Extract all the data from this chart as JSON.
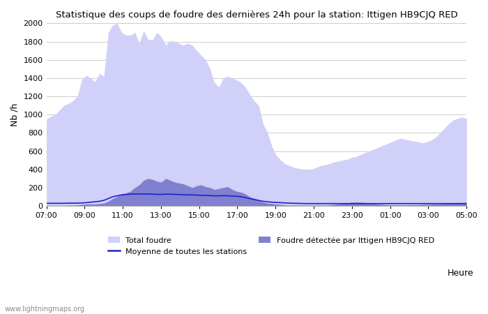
{
  "title": "Statistique des coups de foudre des dernières 24h pour la station: Ittigen HB9CJQ RED",
  "ylabel": "Nb /h",
  "xlabel": "Heure",
  "ylim": [
    0,
    2000
  ],
  "yticks": [
    0,
    200,
    400,
    600,
    800,
    1000,
    1200,
    1400,
    1600,
    1800,
    2000
  ],
  "xtick_labels": [
    "07:00",
    "09:00",
    "11:00",
    "13:00",
    "15:00",
    "17:00",
    "19:00",
    "21:00",
    "23:00",
    "01:00",
    "03:00",
    "05:00"
  ],
  "bg_color": "#ffffff",
  "grid_color": "#cccccc",
  "total_color": "#d0d0f8",
  "local_color": "#8080d0",
  "mean_color": "#2020cc",
  "watermark": "www.lightningmaps.org",
  "total_foudre": [
    950,
    980,
    1000,
    1050,
    1100,
    1120,
    1150,
    1200,
    1380,
    1430,
    1400,
    1360,
    1450,
    1420,
    1900,
    1980,
    2000,
    1900,
    1870,
    1870,
    1900,
    1780,
    1920,
    1820,
    1820,
    1900,
    1850,
    1760,
    1810,
    1800,
    1780,
    1760,
    1780,
    1760,
    1700,
    1650,
    1600,
    1500,
    1350,
    1300,
    1400,
    1420,
    1400,
    1380,
    1350,
    1300,
    1220,
    1150,
    1100,
    900,
    800,
    650,
    550,
    500,
    460,
    440,
    420,
    410,
    400,
    390,
    400,
    420,
    440,
    450,
    460,
    480,
    490,
    500,
    510,
    530,
    540,
    560,
    580,
    600,
    620,
    640,
    660,
    680,
    700,
    720,
    740,
    730,
    720,
    710,
    700,
    690,
    700,
    720,
    750,
    800,
    850,
    900,
    940,
    960,
    970,
    960
  ],
  "local_foudre": [
    5,
    5,
    5,
    5,
    5,
    8,
    8,
    10,
    15,
    20,
    20,
    20,
    25,
    30,
    50,
    80,
    100,
    130,
    140,
    160,
    200,
    230,
    280,
    300,
    290,
    270,
    260,
    300,
    280,
    260,
    250,
    240,
    220,
    200,
    220,
    230,
    210,
    200,
    180,
    190,
    200,
    210,
    180,
    160,
    150,
    130,
    100,
    80,
    60,
    40,
    30,
    25,
    20,
    15,
    10,
    8,
    8,
    8,
    8,
    8,
    8,
    8,
    8,
    8,
    10,
    15,
    20,
    30,
    30,
    40,
    40,
    40,
    35,
    30,
    25,
    20,
    15,
    12,
    10,
    10,
    10,
    10,
    10,
    12,
    12,
    15,
    15,
    18,
    20,
    22,
    25,
    28,
    30,
    35,
    35,
    40
  ],
  "mean_foudre": [
    28,
    28,
    28,
    28,
    28,
    30,
    30,
    30,
    32,
    35,
    40,
    45,
    50,
    60,
    80,
    100,
    110,
    120,
    125,
    128,
    130,
    130,
    130,
    130,
    128,
    126,
    125,
    128,
    128,
    126,
    124,
    122,
    120,
    120,
    118,
    116,
    115,
    112,
    110,
    110,
    112,
    110,
    108,
    105,
    100,
    90,
    80,
    70,
    60,
    50,
    45,
    40,
    38,
    35,
    32,
    30,
    28,
    27,
    26,
    25,
    25,
    25,
    25,
    25,
    25,
    25,
    25,
    25,
    25,
    25,
    25,
    25,
    25,
    25,
    25,
    25,
    25,
    25,
    25,
    25,
    25,
    25,
    25,
    25,
    25,
    25,
    25,
    25,
    25,
    25,
    25,
    25,
    25,
    25,
    25,
    25
  ]
}
